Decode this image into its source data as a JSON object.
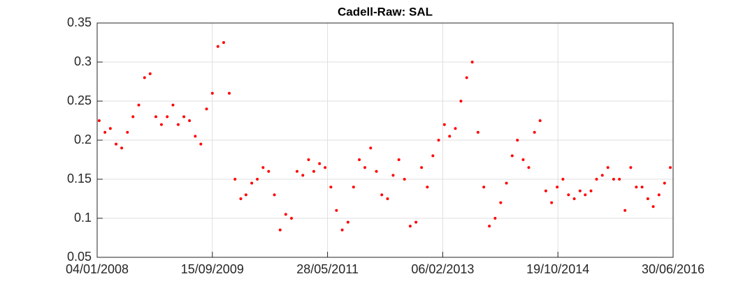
{
  "chart_data": {
    "type": "scatter",
    "title": "Cadell-Raw: SAL",
    "x": [
      "2008-01-15",
      "2008-02-15",
      "2008-03-15",
      "2008-04-15",
      "2008-05-15",
      "2008-06-15",
      "2008-07-15",
      "2008-08-15",
      "2008-09-15",
      "2008-10-15",
      "2008-11-15",
      "2008-12-15",
      "2009-01-15",
      "2009-02-15",
      "2009-03-15",
      "2009-04-15",
      "2009-05-15",
      "2009-06-15",
      "2009-07-15",
      "2009-08-15",
      "2009-09-15",
      "2009-10-15",
      "2009-11-15",
      "2009-12-15",
      "2010-01-15",
      "2010-02-15",
      "2010-03-15",
      "2010-04-15",
      "2010-05-15",
      "2010-06-15",
      "2010-07-15",
      "2010-08-15",
      "2010-09-15",
      "2010-10-15",
      "2010-11-15",
      "2010-12-15",
      "2011-01-15",
      "2011-02-15",
      "2011-03-15",
      "2011-04-15",
      "2011-05-15",
      "2011-06-15",
      "2011-07-15",
      "2011-08-15",
      "2011-09-15",
      "2011-10-15",
      "2011-11-15",
      "2011-12-15",
      "2012-01-15",
      "2012-02-15",
      "2012-03-15",
      "2012-04-15",
      "2012-05-15",
      "2012-06-15",
      "2012-07-15",
      "2012-08-15",
      "2012-09-15",
      "2012-10-15",
      "2012-11-15",
      "2012-12-15",
      "2013-01-15",
      "2013-02-15",
      "2013-03-15",
      "2013-04-15",
      "2013-05-15",
      "2013-06-15",
      "2013-07-15",
      "2013-08-15",
      "2013-09-15",
      "2013-10-15",
      "2013-11-15",
      "2013-12-15",
      "2014-01-15",
      "2014-02-15",
      "2014-03-15",
      "2014-04-15",
      "2014-05-15",
      "2014-06-15",
      "2014-07-15",
      "2014-08-15",
      "2014-09-15",
      "2014-10-15",
      "2014-11-15",
      "2014-12-15",
      "2015-01-15",
      "2015-02-15",
      "2015-03-15",
      "2015-04-15",
      "2015-05-15",
      "2015-06-15",
      "2015-07-15",
      "2015-08-15",
      "2015-09-15",
      "2015-10-15",
      "2015-11-15",
      "2015-12-15",
      "2016-01-15",
      "2016-02-15",
      "2016-03-15",
      "2016-04-15",
      "2016-05-15",
      "2016-06-15"
    ],
    "series": [
      {
        "color": "#ff0000",
        "values": [
          0.225,
          0.21,
          0.215,
          0.195,
          0.19,
          0.21,
          0.23,
          0.245,
          0.28,
          0.285,
          0.23,
          0.22,
          0.23,
          0.245,
          0.22,
          0.23,
          0.225,
          0.205,
          0.195,
          0.24,
          0.26,
          0.32,
          0.325,
          0.26,
          0.15,
          0.125,
          0.13,
          0.145,
          0.15,
          0.165,
          0.16,
          0.13,
          0.085,
          0.105,
          0.1,
          0.16,
          0.155,
          0.175,
          0.16,
          0.17,
          0.165,
          0.14,
          0.11,
          0.085,
          0.095,
          0.14,
          0.175,
          0.165,
          0.19,
          0.16,
          0.13,
          0.125,
          0.155,
          0.175,
          0.15,
          0.09,
          0.095,
          0.165,
          0.14,
          0.18,
          0.2,
          0.22,
          0.205,
          0.215,
          0.25,
          0.28,
          0.3,
          0.21,
          0.14,
          0.09,
          0.1,
          0.12,
          0.145,
          0.18,
          0.2,
          0.175,
          0.165,
          0.21,
          0.225,
          0.135,
          0.12,
          0.14,
          0.15,
          0.13,
          0.125,
          0.135,
          0.13,
          0.135,
          0.15,
          0.155,
          0.165,
          0.15,
          0.15,
          0.11,
          0.165,
          0.14,
          0.14,
          0.125,
          0.115,
          0.13,
          0.145,
          0.165
        ]
      }
    ],
    "xlim": [
      "2008-01-04",
      "2016-06-30"
    ],
    "xticks": [
      {
        "value": "2008-01-04",
        "label": "04/01/2008"
      },
      {
        "value": "2009-09-15",
        "label": "15/09/2009"
      },
      {
        "value": "2011-05-28",
        "label": "28/05/2011"
      },
      {
        "value": "2013-02-06",
        "label": "06/02/2013"
      },
      {
        "value": "2014-10-19",
        "label": "19/10/2014"
      },
      {
        "value": "2016-06-30",
        "label": "30/06/2016"
      }
    ],
    "ylim": [
      0.05,
      0.35
    ],
    "yticks": [
      0.05,
      0.1,
      0.15,
      0.2,
      0.25,
      0.3,
      0.35
    ],
    "grid": true
  }
}
